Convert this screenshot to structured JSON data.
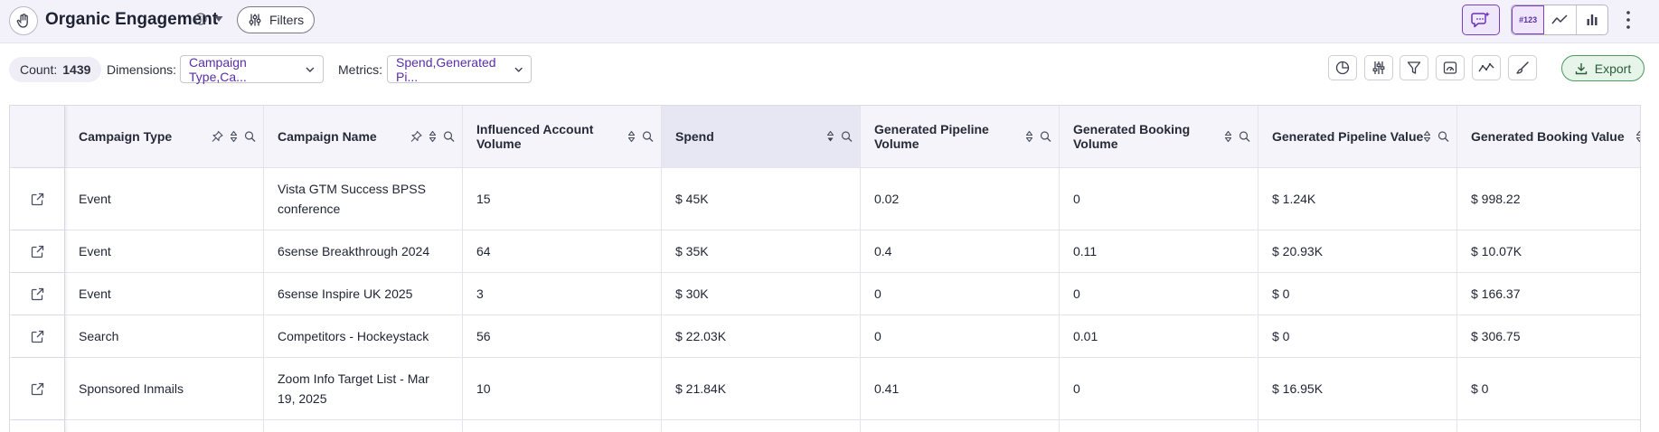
{
  "header": {
    "title": "Organic Engagement",
    "filters_label": "Filters",
    "viz_number_label": "#123"
  },
  "toolbar": {
    "count_label": "Count:",
    "count_value": "1439",
    "dimensions_label": "Dimensions:",
    "dimensions_value": "Campaign Type,Ca...",
    "metrics_label": "Metrics:",
    "metrics_value": "Spend,Generated Pi...",
    "export_label": "Export"
  },
  "table": {
    "columns": [
      "Campaign Type",
      "Campaign Name",
      "Influenced Account Volume",
      "Spend",
      "Generated Pipeline Volume",
      "Generated Booking Volume",
      "Generated Pipeline Value",
      "Generated Booking Value"
    ],
    "rows": [
      [
        "Event",
        "Vista GTM Success BPSS conference",
        "15",
        "$ 45K",
        "0.02",
        "0",
        "$ 1.24K",
        "$ 998.22"
      ],
      [
        "Event",
        "6sense Breakthrough 2024",
        "64",
        "$ 35K",
        "0.4",
        "0.11",
        "$ 20.93K",
        "$ 10.07K"
      ],
      [
        "Event",
        "6sense Inspire UK 2025",
        "3",
        "$ 30K",
        "0",
        "0",
        "$ 0",
        "$ 166.37"
      ],
      [
        "Search",
        "Competitors - Hockeystack",
        "56",
        "$ 22.03K",
        "0",
        "0.01",
        "$ 0",
        "$ 306.75"
      ],
      [
        "Sponsored Inmails",
        "Zoom Info Target List - Mar 19, 2025",
        "10",
        "$ 21.84K",
        "0.41",
        "0",
        "$ 16.95K",
        "$ 0"
      ]
    ]
  },
  "colors": {
    "accent": "#5a2ea6",
    "export_green": "#2a5e37",
    "header_bg": "#f3f2fa"
  }
}
